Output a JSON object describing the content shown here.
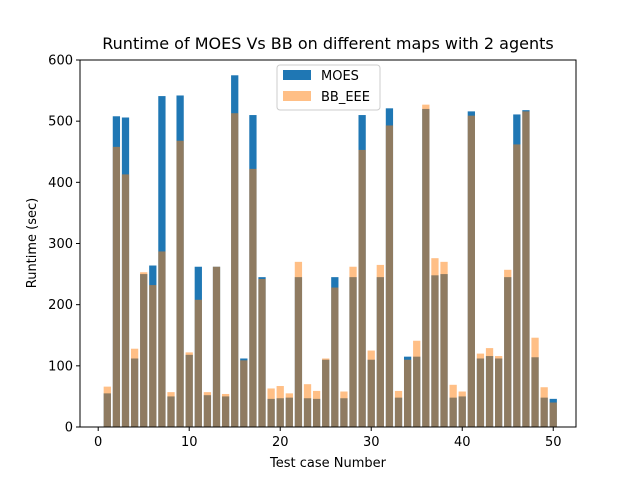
{
  "chart_data": {
    "type": "bar",
    "title": "Runtime of MOES Vs BB on different maps with 2 agents",
    "xlabel": "Test case Number",
    "ylabel": "Runtime (sec)",
    "xlim": [
      -2,
      52.5
    ],
    "ylim": [
      0,
      600
    ],
    "xticks": [
      0,
      10,
      20,
      30,
      40,
      50
    ],
    "yticks": [
      0,
      100,
      200,
      300,
      400,
      500,
      600
    ],
    "legend_position": "upper-center",
    "x": [
      1,
      2,
      3,
      4,
      5,
      6,
      7,
      8,
      9,
      10,
      11,
      12,
      13,
      14,
      15,
      16,
      17,
      18,
      19,
      20,
      21,
      22,
      23,
      24,
      25,
      26,
      27,
      28,
      29,
      30,
      31,
      32,
      33,
      34,
      35,
      36,
      37,
      38,
      39,
      40,
      41,
      42,
      43,
      44,
      45,
      46,
      47,
      48,
      49,
      50
    ],
    "series": [
      {
        "name": "MOES",
        "color": "#1f77b4",
        "opacity": 1,
        "values": [
          55,
          508,
          506,
          112,
          250,
          264,
          541,
          50,
          542,
          118,
          262,
          52,
          262,
          50,
          575,
          112,
          510,
          245,
          46,
          47,
          48,
          245,
          47,
          46,
          110,
          245,
          47,
          245,
          510,
          110,
          245,
          521,
          48,
          115,
          115,
          520,
          248,
          250,
          48,
          50,
          516,
          112,
          116,
          112,
          245,
          511,
          518,
          114,
          48,
          46
        ]
      },
      {
        "name": "BB_EEE",
        "color": "#ff7f0e",
        "opacity": 0.5,
        "values": [
          66,
          458,
          413,
          128,
          253,
          232,
          287,
          57,
          468,
          122,
          208,
          57,
          262,
          54,
          513,
          109,
          422,
          242,
          63,
          67,
          55,
          270,
          70,
          59,
          112,
          228,
          58,
          262,
          453,
          125,
          265,
          493,
          59,
          110,
          141,
          527,
          276,
          270,
          69,
          58,
          509,
          120,
          129,
          116,
          257,
          462,
          516,
          146,
          65,
          40
        ]
      }
    ]
  }
}
